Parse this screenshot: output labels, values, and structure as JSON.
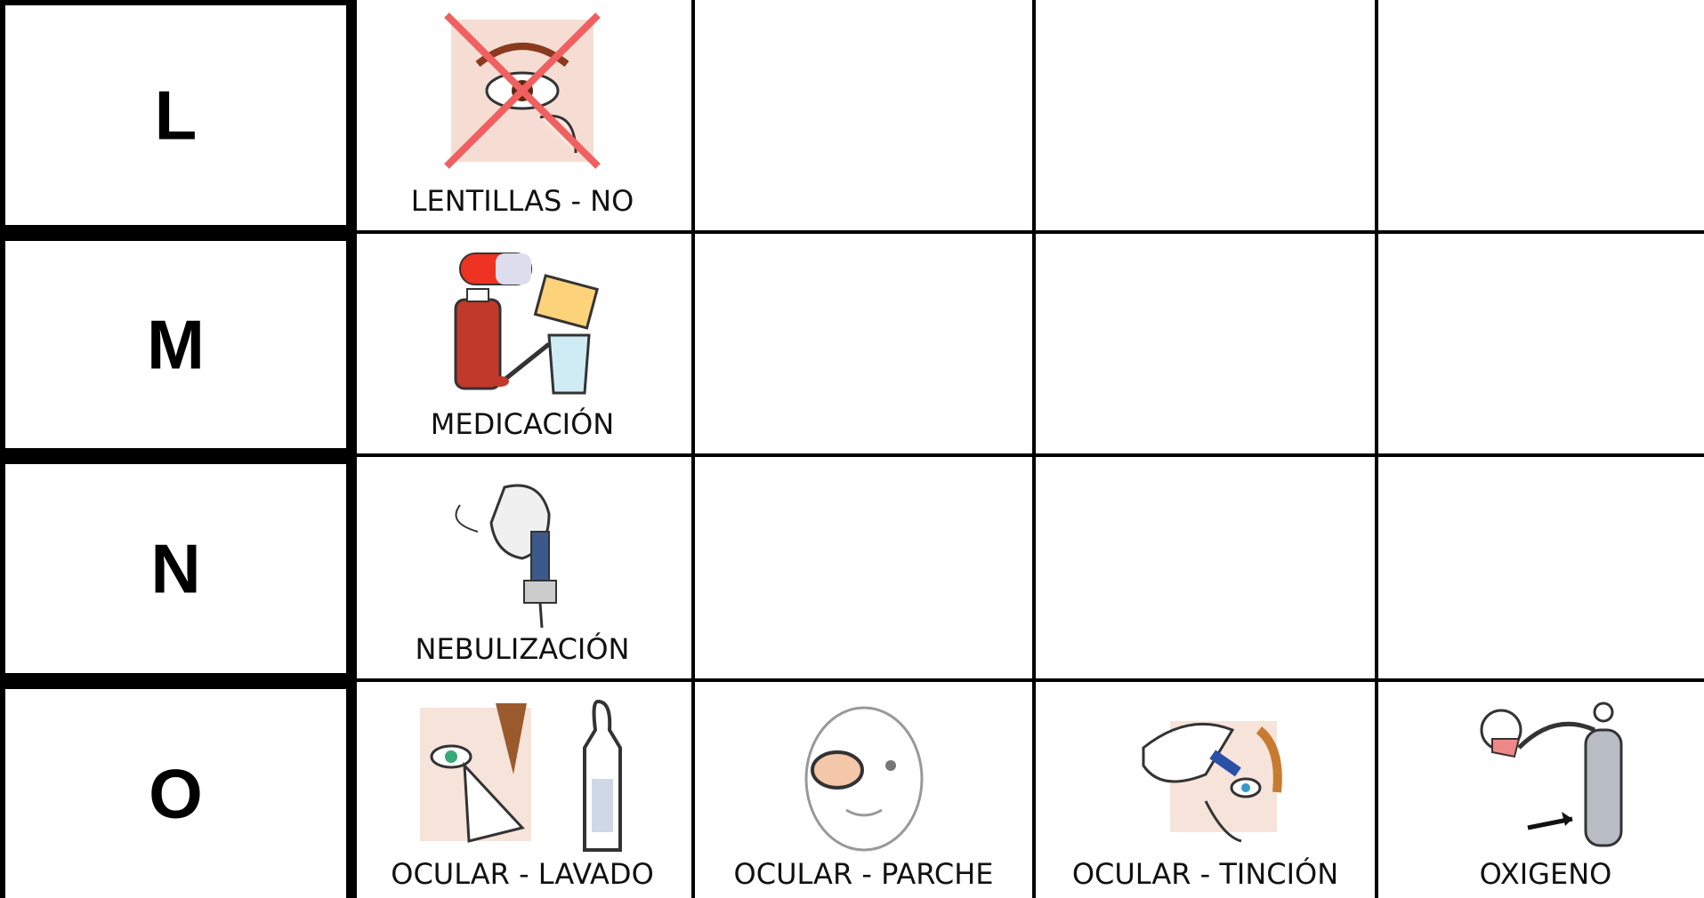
{
  "rows": [
    {
      "letter": "L",
      "cells": [
        {
          "label": "LENTILLAS - NO"
        }
      ]
    },
    {
      "letter": "M",
      "cells": [
        {
          "label": "MEDICACIÓN"
        }
      ]
    },
    {
      "letter": "N",
      "cells": [
        {
          "label": "NEBULIZACIÓN"
        }
      ]
    },
    {
      "letter": "O",
      "cells": [
        {
          "label": "OCULAR - LAVADO"
        },
        {
          "label": "OCULAR - PARCHE"
        },
        {
          "label": "OCULAR - TINCIÓN"
        },
        {
          "label": "OXIGENO"
        }
      ]
    }
  ]
}
